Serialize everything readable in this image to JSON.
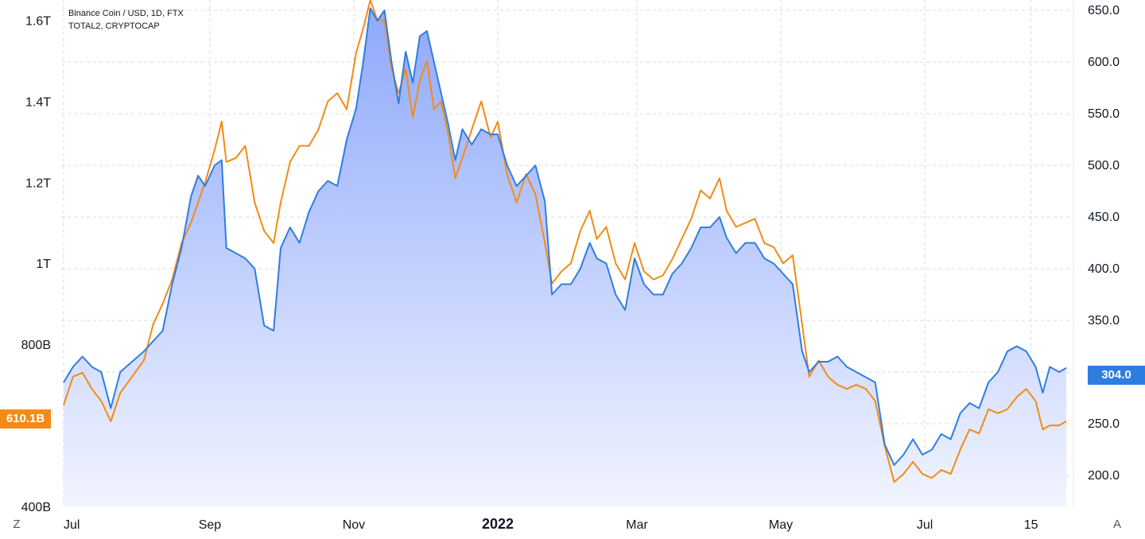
{
  "legend": {
    "line1": "Binance Coin / USD, 1D, FTX",
    "line2": "TOTAL2, CRYPTOCAP"
  },
  "buttons": {
    "left": "Z",
    "right": "A"
  },
  "colors": {
    "series_primary": "#2e7de1",
    "series_secondary": "#f38b16",
    "area_fill_top": "#8fa9fb",
    "area_fill_bottom": "#f1f4ff",
    "grid": "#d8dbe0",
    "text": "#131722"
  },
  "last_values": {
    "left": "610.1B",
    "right": "304.0"
  },
  "chart_data": {
    "type": "line",
    "x_ticks": [
      "Jul",
      "Sep",
      "Nov",
      "2022",
      "Mar",
      "May",
      "Jul",
      "15"
    ],
    "left_axis": {
      "ticks": [
        "400B",
        "800B",
        "1T",
        "1.2T",
        "1.4T",
        "1.6T"
      ],
      "range": [
        400000000000,
        1650000000000
      ]
    },
    "right_axis": {
      "ticks": [
        "200.0",
        "250.0",
        "300.0",
        "350.0",
        "400.0",
        "450.0",
        "500.0",
        "550.0",
        "600.0",
        "650.0"
      ],
      "range": [
        170,
        660
      ]
    },
    "grid": true,
    "series": [
      {
        "name": "Binance Coin / USD, 1D, FTX",
        "axis": "right",
        "style": "area",
        "points": [
          [
            "2021-07-01",
            290
          ],
          [
            "2021-07-05",
            305
          ],
          [
            "2021-07-09",
            315
          ],
          [
            "2021-07-13",
            305
          ],
          [
            "2021-07-17",
            300
          ],
          [
            "2021-07-21",
            265
          ],
          [
            "2021-07-25",
            300
          ],
          [
            "2021-07-30",
            310
          ],
          [
            "2021-08-04",
            320
          ],
          [
            "2021-08-08",
            330
          ],
          [
            "2021-08-12",
            340
          ],
          [
            "2021-08-16",
            385
          ],
          [
            "2021-08-20",
            420
          ],
          [
            "2021-08-24",
            470
          ],
          [
            "2021-08-27",
            490
          ],
          [
            "2021-08-30",
            480
          ],
          [
            "2021-09-03",
            500
          ],
          [
            "2021-09-06",
            505
          ],
          [
            "2021-09-08",
            420
          ],
          [
            "2021-09-12",
            415
          ],
          [
            "2021-09-16",
            410
          ],
          [
            "2021-09-20",
            400
          ],
          [
            "2021-09-24",
            345
          ],
          [
            "2021-09-28",
            340
          ],
          [
            "2021-10-01",
            420
          ],
          [
            "2021-10-05",
            440
          ],
          [
            "2021-10-09",
            425
          ],
          [
            "2021-10-13",
            455
          ],
          [
            "2021-10-17",
            475
          ],
          [
            "2021-10-21",
            485
          ],
          [
            "2021-10-25",
            480
          ],
          [
            "2021-10-29",
            525
          ],
          [
            "2021-11-02",
            555
          ],
          [
            "2021-11-05",
            600
          ],
          [
            "2021-11-08",
            652
          ],
          [
            "2021-11-11",
            640
          ],
          [
            "2021-11-14",
            650
          ],
          [
            "2021-11-17",
            600
          ],
          [
            "2021-11-20",
            560
          ],
          [
            "2021-11-23",
            610
          ],
          [
            "2021-11-26",
            580
          ],
          [
            "2021-11-29",
            625
          ],
          [
            "2021-12-02",
            630
          ],
          [
            "2021-12-05",
            600
          ],
          [
            "2021-12-08",
            570
          ],
          [
            "2021-12-11",
            540
          ],
          [
            "2021-12-14",
            505
          ],
          [
            "2021-12-17",
            535
          ],
          [
            "2021-12-21",
            520
          ],
          [
            "2021-12-25",
            535
          ],
          [
            "2021-12-29",
            530
          ],
          [
            "2022-01-01",
            530
          ],
          [
            "2022-01-05",
            500
          ],
          [
            "2022-01-09",
            480
          ],
          [
            "2022-01-13",
            490
          ],
          [
            "2022-01-17",
            500
          ],
          [
            "2022-01-21",
            465
          ],
          [
            "2022-01-24",
            375
          ],
          [
            "2022-01-28",
            385
          ],
          [
            "2022-02-01",
            385
          ],
          [
            "2022-02-05",
            400
          ],
          [
            "2022-02-09",
            425
          ],
          [
            "2022-02-12",
            410
          ],
          [
            "2022-02-16",
            405
          ],
          [
            "2022-02-20",
            375
          ],
          [
            "2022-02-24",
            360
          ],
          [
            "2022-02-28",
            410
          ],
          [
            "2022-03-04",
            385
          ],
          [
            "2022-03-08",
            375
          ],
          [
            "2022-03-12",
            375
          ],
          [
            "2022-03-16",
            395
          ],
          [
            "2022-03-20",
            405
          ],
          [
            "2022-03-24",
            420
          ],
          [
            "2022-03-28",
            440
          ],
          [
            "2022-04-01",
            440
          ],
          [
            "2022-04-05",
            450
          ],
          [
            "2022-04-08",
            430
          ],
          [
            "2022-04-12",
            415
          ],
          [
            "2022-04-16",
            425
          ],
          [
            "2022-04-20",
            425
          ],
          [
            "2022-04-24",
            410
          ],
          [
            "2022-04-28",
            405
          ],
          [
            "2022-05-02",
            395
          ],
          [
            "2022-05-06",
            385
          ],
          [
            "2022-05-10",
            320
          ],
          [
            "2022-05-13",
            300
          ],
          [
            "2022-05-17",
            310
          ],
          [
            "2022-05-21",
            310
          ],
          [
            "2022-05-25",
            315
          ],
          [
            "2022-05-29",
            305
          ],
          [
            "2022-06-02",
            300
          ],
          [
            "2022-06-06",
            295
          ],
          [
            "2022-06-10",
            290
          ],
          [
            "2022-06-14",
            230
          ],
          [
            "2022-06-18",
            210
          ],
          [
            "2022-06-22",
            220
          ],
          [
            "2022-06-26",
            235
          ],
          [
            "2022-06-30",
            220
          ],
          [
            "2022-07-04",
            225
          ],
          [
            "2022-07-08",
            240
          ],
          [
            "2022-07-12",
            235
          ],
          [
            "2022-07-16",
            260
          ],
          [
            "2022-07-20",
            270
          ],
          [
            "2022-07-24",
            265
          ],
          [
            "2022-07-28",
            290
          ],
          [
            "2022-08-01",
            300
          ],
          [
            "2022-08-05",
            320
          ],
          [
            "2022-08-09",
            325
          ],
          [
            "2022-08-13",
            320
          ],
          [
            "2022-08-17",
            305
          ],
          [
            "2022-08-20",
            280
          ],
          [
            "2022-08-23",
            305
          ],
          [
            "2022-08-27",
            300
          ],
          [
            "2022-08-30",
            304
          ]
        ]
      },
      {
        "name": "TOTAL2, CRYPTOCAP",
        "axis": "left",
        "style": "line",
        "points": [
          [
            "2021-07-01",
            650
          ],
          [
            "2021-07-05",
            720
          ],
          [
            "2021-07-09",
            730
          ],
          [
            "2021-07-13",
            690
          ],
          [
            "2021-07-17",
            660
          ],
          [
            "2021-07-21",
            610
          ],
          [
            "2021-07-25",
            680
          ],
          [
            "2021-07-30",
            720
          ],
          [
            "2021-08-04",
            760
          ],
          [
            "2021-08-08",
            850
          ],
          [
            "2021-08-12",
            900
          ],
          [
            "2021-08-16",
            960
          ],
          [
            "2021-08-20",
            1050
          ],
          [
            "2021-08-24",
            1100
          ],
          [
            "2021-08-27",
            1150
          ],
          [
            "2021-08-30",
            1200
          ],
          [
            "2021-09-03",
            1280
          ],
          [
            "2021-09-06",
            1350
          ],
          [
            "2021-09-08",
            1250
          ],
          [
            "2021-09-12",
            1260
          ],
          [
            "2021-09-16",
            1290
          ],
          [
            "2021-09-20",
            1150
          ],
          [
            "2021-09-24",
            1080
          ],
          [
            "2021-09-28",
            1050
          ],
          [
            "2021-10-01",
            1150
          ],
          [
            "2021-10-05",
            1250
          ],
          [
            "2021-10-09",
            1290
          ],
          [
            "2021-10-13",
            1290
          ],
          [
            "2021-10-17",
            1330
          ],
          [
            "2021-10-21",
            1400
          ],
          [
            "2021-10-25",
            1420
          ],
          [
            "2021-10-29",
            1380
          ],
          [
            "2021-11-02",
            1520
          ],
          [
            "2021-11-05",
            1580
          ],
          [
            "2021-11-08",
            1650
          ],
          [
            "2021-11-11",
            1600
          ],
          [
            "2021-11-14",
            1600
          ],
          [
            "2021-11-17",
            1480
          ],
          [
            "2021-11-20",
            1420
          ],
          [
            "2021-11-23",
            1480
          ],
          [
            "2021-11-26",
            1360
          ],
          [
            "2021-11-29",
            1450
          ],
          [
            "2021-12-02",
            1500
          ],
          [
            "2021-12-05",
            1380
          ],
          [
            "2021-12-08",
            1400
          ],
          [
            "2021-12-11",
            1320
          ],
          [
            "2021-12-14",
            1210
          ],
          [
            "2021-12-17",
            1260
          ],
          [
            "2021-12-21",
            1330
          ],
          [
            "2021-12-25",
            1400
          ],
          [
            "2021-12-29",
            1310
          ],
          [
            "2022-01-01",
            1350
          ],
          [
            "2022-01-05",
            1220
          ],
          [
            "2022-01-09",
            1150
          ],
          [
            "2022-01-13",
            1220
          ],
          [
            "2022-01-17",
            1170
          ],
          [
            "2022-01-21",
            1050
          ],
          [
            "2022-01-24",
            950
          ],
          [
            "2022-01-28",
            980
          ],
          [
            "2022-02-01",
            1000
          ],
          [
            "2022-02-05",
            1080
          ],
          [
            "2022-02-09",
            1130
          ],
          [
            "2022-02-12",
            1060
          ],
          [
            "2022-02-16",
            1090
          ],
          [
            "2022-02-20",
            1000
          ],
          [
            "2022-02-24",
            960
          ],
          [
            "2022-02-28",
            1050
          ],
          [
            "2022-03-04",
            980
          ],
          [
            "2022-03-08",
            960
          ],
          [
            "2022-03-12",
            970
          ],
          [
            "2022-03-16",
            1010
          ],
          [
            "2022-03-20",
            1060
          ],
          [
            "2022-03-24",
            1110
          ],
          [
            "2022-03-28",
            1180
          ],
          [
            "2022-04-01",
            1160
          ],
          [
            "2022-04-05",
            1210
          ],
          [
            "2022-04-08",
            1130
          ],
          [
            "2022-04-12",
            1090
          ],
          [
            "2022-04-16",
            1100
          ],
          [
            "2022-04-20",
            1110
          ],
          [
            "2022-04-24",
            1050
          ],
          [
            "2022-04-28",
            1040
          ],
          [
            "2022-05-02",
            1000
          ],
          [
            "2022-05-06",
            1020
          ],
          [
            "2022-05-10",
            850
          ],
          [
            "2022-05-13",
            720
          ],
          [
            "2022-05-17",
            760
          ],
          [
            "2022-05-21",
            720
          ],
          [
            "2022-05-25",
            700
          ],
          [
            "2022-05-29",
            690
          ],
          [
            "2022-06-02",
            700
          ],
          [
            "2022-06-06",
            690
          ],
          [
            "2022-06-10",
            660
          ],
          [
            "2022-06-14",
            550
          ],
          [
            "2022-06-18",
            460
          ],
          [
            "2022-06-22",
            480
          ],
          [
            "2022-06-26",
            510
          ],
          [
            "2022-06-30",
            480
          ],
          [
            "2022-07-04",
            470
          ],
          [
            "2022-07-08",
            490
          ],
          [
            "2022-07-12",
            480
          ],
          [
            "2022-07-16",
            540
          ],
          [
            "2022-07-20",
            590
          ],
          [
            "2022-07-24",
            580
          ],
          [
            "2022-07-28",
            640
          ],
          [
            "2022-08-01",
            630
          ],
          [
            "2022-08-05",
            640
          ],
          [
            "2022-08-09",
            670
          ],
          [
            "2022-08-13",
            690
          ],
          [
            "2022-08-17",
            660
          ],
          [
            "2022-08-20",
            590
          ],
          [
            "2022-08-23",
            600
          ],
          [
            "2022-08-27",
            600
          ],
          [
            "2022-08-30",
            610.1
          ]
        ]
      }
    ]
  }
}
